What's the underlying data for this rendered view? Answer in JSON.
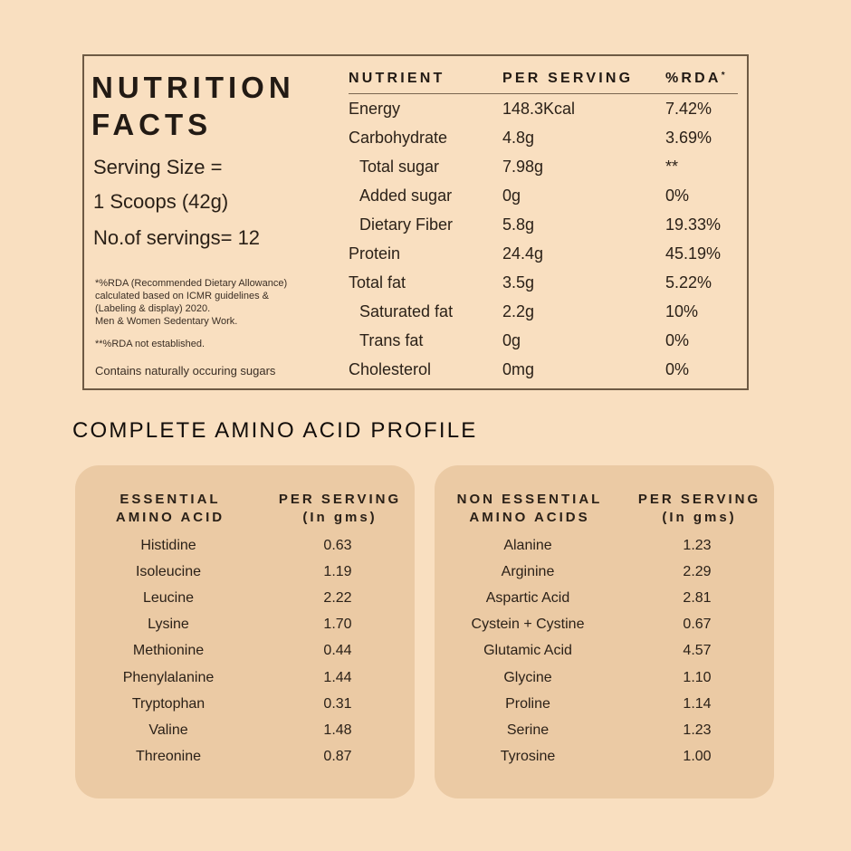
{
  "nutrition": {
    "title_line1": "NUTRITION",
    "title_line2": "FACTS",
    "serving_size_label": "Serving Size =",
    "serving_size_value": "1 Scoops (42g)",
    "servings_count": "No.of servings= 12",
    "footnotes": {
      "rda_line1": "*%RDA (Recommended Dietary Allowance)",
      "rda_line2": "calculated based on ICMR guidelines &",
      "rda_line3": "(Labeling & display) 2020.",
      "rda_line4": "Men & Women Sedentary Work.",
      "not_established": "**%RDA not established.",
      "sugars_note": "Contains naturally occuring sugars"
    },
    "table": {
      "headers": {
        "nutrient": "NUTRIENT",
        "per_serving": "PER SERVING",
        "rda": "%RDA",
        "rda_mark": "*"
      },
      "rows": [
        {
          "name": "Energy",
          "value": "148.3Kcal",
          "rda": "7.42%",
          "indent": false
        },
        {
          "name": "Carbohydrate",
          "value": "4.8g",
          "rda": "3.69%",
          "indent": false
        },
        {
          "name": "Total sugar",
          "value": "7.98g",
          "rda": "**",
          "indent": true
        },
        {
          "name": "Added sugar",
          "value": "0g",
          "rda": "0%",
          "indent": true
        },
        {
          "name": "Dietary Fiber",
          "value": "5.8g",
          "rda": "19.33%",
          "indent": true
        },
        {
          "name": "Protein",
          "value": "24.4g",
          "rda": "45.19%",
          "indent": false
        },
        {
          "name": "Total fat",
          "value": "3.5g",
          "rda": "5.22%",
          "indent": false
        },
        {
          "name": "Saturated fat",
          "value": "2.2g",
          "rda": "10%",
          "indent": true
        },
        {
          "name": "Trans fat",
          "value": "0g",
          "rda": "0%",
          "indent": true
        },
        {
          "name": "Cholesterol",
          "value": "0mg",
          "rda": "0%",
          "indent": false
        }
      ]
    }
  },
  "amino": {
    "section_title": "COMPLETE AMINO ACID PROFILE",
    "essential": {
      "header_name_line1": "ESSENTIAL",
      "header_name_line2": "AMINO ACID",
      "header_value_line1": "PER SERVING",
      "header_value_line2": "(In gms)",
      "rows": [
        {
          "name": "Histidine",
          "value": "0.63"
        },
        {
          "name": "Isoleucine",
          "value": "1.19"
        },
        {
          "name": "Leucine",
          "value": "2.22"
        },
        {
          "name": "Lysine",
          "value": "1.70"
        },
        {
          "name": "Methionine",
          "value": "0.44"
        },
        {
          "name": "Phenylalanine",
          "value": "1.44"
        },
        {
          "name": "Tryptophan",
          "value": "0.31"
        },
        {
          "name": "Valine",
          "value": "1.48"
        },
        {
          "name": "Threonine",
          "value": "0.87"
        }
      ]
    },
    "non_essential": {
      "header_name_line1": "NON ESSENTIAL",
      "header_name_line2": "AMINO ACIDS",
      "header_value_line1": "PER SERVING",
      "header_value_line2": "(In gms)",
      "rows": [
        {
          "name": "Alanine",
          "value": "1.23"
        },
        {
          "name": "Arginine",
          "value": "2.29"
        },
        {
          "name": "Aspartic Acid",
          "value": "2.81"
        },
        {
          "name": "Cystein + Cystine",
          "value": "0.67"
        },
        {
          "name": "Glutamic Acid",
          "value": "4.57"
        },
        {
          "name": "Glycine",
          "value": "1.10"
        },
        {
          "name": "Proline",
          "value": "1.14"
        },
        {
          "name": "Serine",
          "value": "1.23"
        },
        {
          "name": "Tyrosine",
          "value": "1.00"
        }
      ]
    }
  },
  "colors": {
    "background": "#f9dfc0",
    "card": "#ebcaa4",
    "frame_border": "#6e5a44",
    "text": "#2b2118"
  }
}
